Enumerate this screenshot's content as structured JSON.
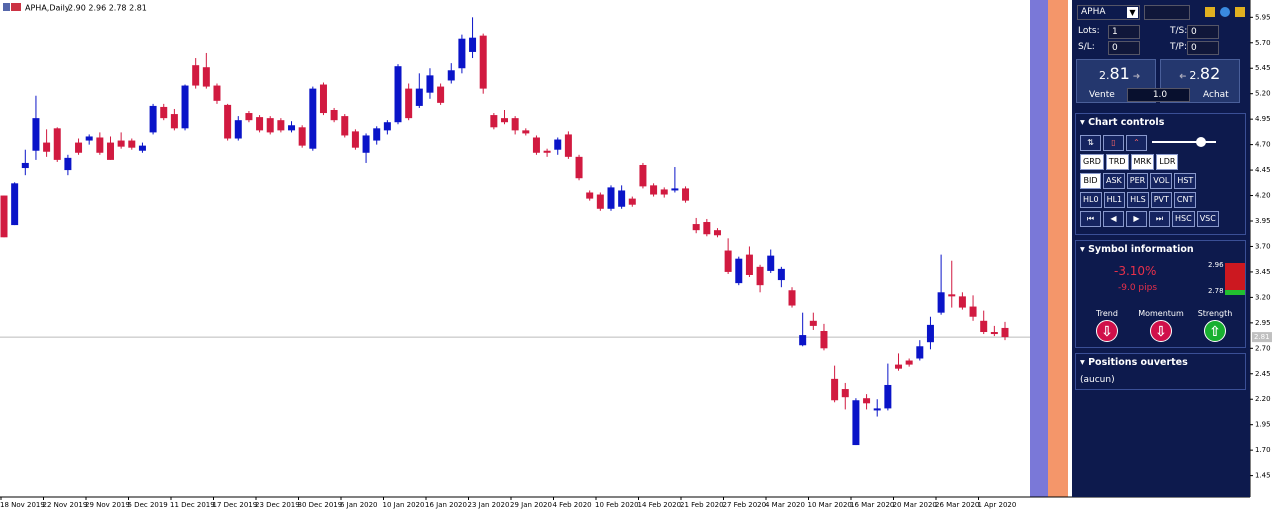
{
  "window_title": "APHA,Daily",
  "ohlc_header": "2.90 2.96 2.78 2.81",
  "chart_data": {
    "type": "candlestick",
    "open": [
      4.2,
      3.91,
      4.47,
      4.64,
      4.72,
      4.86,
      4.45,
      4.72,
      4.74,
      4.77,
      4.72,
      4.74,
      4.74,
      4.64,
      4.82,
      5.07,
      5.0,
      4.86,
      5.48,
      5.46,
      5.28,
      5.09,
      4.76,
      5.01,
      4.97,
      4.96,
      4.94,
      4.84,
      4.87,
      4.66,
      5.29,
      5.04,
      4.98,
      4.83,
      4.62,
      4.74,
      4.84,
      4.92,
      5.25,
      5.08,
      5.21,
      5.27,
      5.33,
      5.45,
      5.61,
      5.77,
      4.99,
      4.96,
      4.96,
      4.84,
      4.77,
      4.64,
      4.65,
      4.8,
      4.58,
      4.23,
      4.21,
      4.07,
      4.09,
      4.17,
      4.5,
      4.3,
      4.26,
      4.25,
      4.27,
      3.92,
      3.94,
      3.86,
      3.66,
      3.34,
      3.62,
      3.5,
      3.46,
      3.37,
      3.27,
      2.73,
      2.97,
      2.87,
      2.4,
      2.3,
      1.75,
      2.21,
      2.09,
      2.11,
      2.54,
      2.58,
      2.6,
      2.76,
      3.05,
      3.23,
      3.21,
      3.11,
      2.97,
      2.86,
      2.9
    ],
    "high": [
      4.2,
      4.33,
      4.65,
      5.18,
      4.85,
      4.87,
      4.6,
      4.76,
      4.8,
      4.82,
      4.78,
      4.82,
      4.76,
      4.72,
      5.1,
      5.1,
      5.05,
      5.29,
      5.55,
      5.6,
      5.3,
      5.1,
      4.98,
      5.03,
      4.99,
      4.98,
      4.96,
      4.93,
      4.89,
      5.27,
      5.31,
      5.06,
      5.0,
      4.85,
      4.81,
      4.88,
      4.94,
      5.49,
      5.3,
      5.4,
      5.45,
      5.3,
      5.5,
      5.78,
      5.95,
      5.79,
      5.01,
      5.04,
      4.98,
      4.86,
      4.79,
      4.66,
      4.77,
      4.83,
      4.6,
      4.25,
      4.23,
      4.3,
      4.3,
      4.19,
      4.52,
      4.32,
      4.28,
      4.48,
      4.29,
      3.98,
      3.97,
      3.88,
      3.78,
      3.6,
      3.7,
      3.52,
      3.67,
      3.5,
      3.3,
      3.05,
      3.05,
      2.94,
      2.53,
      2.36,
      2.21,
      2.25,
      2.2,
      2.55,
      2.65,
      2.6,
      2.78,
      3.01,
      3.62,
      3.56,
      3.25,
      3.22,
      3.07,
      2.92,
      2.96
    ],
    "low": [
      3.79,
      3.91,
      4.4,
      4.55,
      4.58,
      4.53,
      4.4,
      4.6,
      4.7,
      4.6,
      4.55,
      4.66,
      4.65,
      4.62,
      4.8,
      4.94,
      4.84,
      4.84,
      5.25,
      5.25,
      5.1,
      4.74,
      4.74,
      4.92,
      4.82,
      4.8,
      4.82,
      4.82,
      4.67,
      4.64,
      4.99,
      4.92,
      4.77,
      4.65,
      4.52,
      4.7,
      4.8,
      4.9,
      4.94,
      5.06,
      5.15,
      5.09,
      5.3,
      5.4,
      5.55,
      5.2,
      4.85,
      4.9,
      4.8,
      4.79,
      4.6,
      4.58,
      4.6,
      4.56,
      4.35,
      4.15,
      4.05,
      4.05,
      4.07,
      4.09,
      4.27,
      4.19,
      4.18,
      4.23,
      4.13,
      3.83,
      3.8,
      3.79,
      3.43,
      3.32,
      3.4,
      3.25,
      3.44,
      3.3,
      3.1,
      2.72,
      2.88,
      2.68,
      2.17,
      2.1,
      1.75,
      2.1,
      2.03,
      2.09,
      2.48,
      2.52,
      2.58,
      2.69,
      3.03,
      3.1,
      3.08,
      2.97,
      2.84,
      2.82,
      2.78
    ],
    "close": [
      3.79,
      4.32,
      4.52,
      4.96,
      4.63,
      4.55,
      4.57,
      4.62,
      4.78,
      4.62,
      4.55,
      4.68,
      4.67,
      4.69,
      5.08,
      4.96,
      4.86,
      5.28,
      5.28,
      5.27,
      5.13,
      4.76,
      4.94,
      4.94,
      4.84,
      4.82,
      4.84,
      4.89,
      4.69,
      5.25,
      5.01,
      4.94,
      4.79,
      4.67,
      4.79,
      4.86,
      4.92,
      5.47,
      4.96,
      5.25,
      5.38,
      5.11,
      5.43,
      5.74,
      5.75,
      5.25,
      4.87,
      4.92,
      4.84,
      4.81,
      4.62,
      4.62,
      4.75,
      4.58,
      4.37,
      4.17,
      4.07,
      4.28,
      4.25,
      4.11,
      4.29,
      4.21,
      4.21,
      4.27,
      4.15,
      3.86,
      3.82,
      3.81,
      3.45,
      3.58,
      3.42,
      3.32,
      3.61,
      3.48,
      3.12,
      2.83,
      2.92,
      2.7,
      2.19,
      2.22,
      2.19,
      2.16,
      2.11,
      2.34,
      2.5,
      2.54,
      2.72,
      2.93,
      3.25,
      3.21,
      3.1,
      3.01,
      2.86,
      2.84,
      2.81
    ],
    "up_color": "#0a14c8",
    "down_color": "#d11a40",
    "ylim": [
      1.24,
      6.12
    ],
    "yticks": [
      5.95,
      {
        "value": 5.7,
        "label": "5.70"
      },
      5.45,
      {
        "value": 5.2,
        "label": "5.20"
      },
      4.95,
      {
        "value": 4.7,
        "label": "4.70"
      },
      4.45,
      {
        "value": 4.2,
        "label": "4.20"
      },
      3.95,
      {
        "value": 3.7,
        "label": "3.70"
      },
      3.45,
      {
        "value": 3.2,
        "label": "3.20"
      },
      2.95,
      {
        "value": 2.7,
        "label": "2.70"
      },
      2.45,
      {
        "value": 2.2,
        "label": "2.20"
      },
      1.95,
      {
        "value": 1.7,
        "label": "1.70"
      },
      1.45
    ],
    "x_labels": [
      "18 Nov 2019",
      "22 Nov 2019",
      "29 Nov 2019",
      "5 Dec 2019",
      "11 Dec 2019",
      "17 Dec 2019",
      "23 Dec 2019",
      "30 Dec 2019",
      "6 Jan 2020",
      "10 Jan 2020",
      "16 Jan 2020",
      "23 Jan 2020",
      "29 Jan 2020",
      "4 Feb 2020",
      "10 Feb 2020",
      "14 Feb 2020",
      "21 Feb 2020",
      "27 Feb 2020",
      "4 Mar 2020",
      "10 Mar 2020",
      "16 Mar 2020",
      "20 Mar 2020",
      "26 Mar 2020",
      "1 Apr 2020"
    ],
    "last_price": 2.81
  },
  "panel": {
    "symbol": "APHA",
    "lots_label": "Lots:",
    "lots": "1",
    "sl_label": "S/L:",
    "sl": "0",
    "ts_label": "T/S:",
    "ts": "0",
    "tp_label": "T/P:",
    "tp": "0",
    "sell": {
      "price_small": "2.",
      "price_big": "81",
      "label": "Vente"
    },
    "buy": {
      "price_small": "2.",
      "price_big": "82",
      "label": "Achat"
    },
    "quantity": "1.0",
    "chart_controls": {
      "title": "Chart controls",
      "rows": [
        [
          "GRD",
          "TRD",
          "MRK",
          "LDR"
        ],
        [
          "BID",
          "ASK",
          "PER",
          "VOL",
          "HST"
        ],
        [
          "HL0",
          "HL1",
          "HLS",
          "PVT",
          "CNT"
        ],
        [
          "HSC",
          "VSC"
        ]
      ]
    },
    "symbol_information": {
      "title": "Symbol information",
      "change": "-3.10%",
      "pips": "-9.0 pips",
      "high": "2.96",
      "low": "2.78",
      "indicators": [
        "Trend",
        "Momentum",
        "Strength"
      ]
    },
    "positions": {
      "title": "Positions ouvertes",
      "empty": "(aucun)"
    }
  }
}
